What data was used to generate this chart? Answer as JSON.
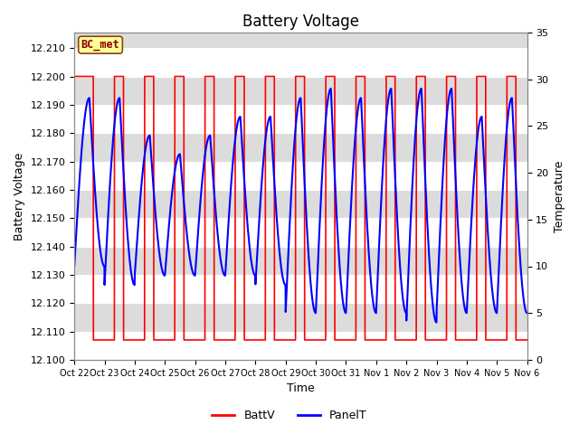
{
  "title": "Battery Voltage",
  "xlabel": "Time",
  "ylabel_left": "Battery Voltage",
  "ylabel_right": "Temperature",
  "ylim_left": [
    12.1,
    12.2155
  ],
  "ylim_right": [
    0,
    35
  ],
  "yticks_left": [
    12.1,
    12.11,
    12.12,
    12.13,
    12.14,
    12.15,
    12.16,
    12.17,
    12.18,
    12.19,
    12.2,
    12.21
  ],
  "yticks_right": [
    0,
    5,
    10,
    15,
    20,
    25,
    30,
    35
  ],
  "x_labels": [
    "Oct 22",
    "Oct 23",
    "Oct 24",
    "Oct 25",
    "Oct 26",
    "Oct 27",
    "Oct 28",
    "Oct 29",
    "Oct 30",
    "Oct 31",
    "Nov 1",
    "Nov 2",
    "Nov 3",
    "Nov 4",
    "Nov 5",
    "Nov 6"
  ],
  "annotation_label": "BC_met",
  "batt_color": "#FF0000",
  "panel_color": "#0000FF",
  "background_color": "#FFFFFF",
  "plot_bg_color": "#DCDCDC",
  "grid_color": "#FFFFFF",
  "legend_labels": [
    "BattV",
    "PanelT"
  ],
  "title_fontsize": 12,
  "label_fontsize": 9,
  "tick_fontsize": 8,
  "n_days": 15,
  "batt_high": 12.2,
  "batt_low": 12.107,
  "temp_max": 32,
  "temp_min": 3
}
